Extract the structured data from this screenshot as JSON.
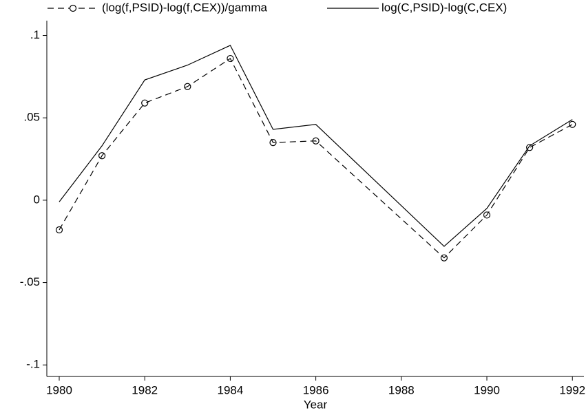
{
  "chart_data": {
    "type": "line",
    "x_label": "Year",
    "x": [
      1980,
      1981,
      1982,
      1983,
      1984,
      1985,
      1986,
      1989,
      1990,
      1991,
      1992
    ],
    "series": [
      {
        "name": "(log(f,PSID)-log(f,CEX))/gamma",
        "color": "#000000",
        "dash": "dashed",
        "marker": "circle",
        "values": [
          -0.018,
          0.027,
          0.059,
          0.069,
          0.086,
          0.035,
          0.036,
          -0.035,
          -0.009,
          0.032,
          0.046
        ]
      },
      {
        "name": "log(C,PSID)-log(C,CEX)",
        "color": "#000000",
        "dash": "solid",
        "marker": "none",
        "values": [
          -0.001,
          0.033,
          0.073,
          0.082,
          0.094,
          0.043,
          0.046,
          -0.028,
          -0.005,
          0.033,
          0.049
        ]
      }
    ],
    "xlim": [
      1979.71,
      1992.27
    ],
    "ylim": [
      -0.107,
      0.109
    ],
    "xticks": [
      1980,
      1982,
      1984,
      1986,
      1988,
      1990,
      1992
    ],
    "yticks": [
      {
        "value": 0.1,
        "label": ".1"
      },
      {
        "value": 0.05,
        "label": ".05"
      },
      0,
      {
        "value": -0.05,
        "label": "-.05"
      },
      {
        "value": -0.1,
        "label": "-.1"
      }
    ],
    "grid": false,
    "legend": "top"
  }
}
